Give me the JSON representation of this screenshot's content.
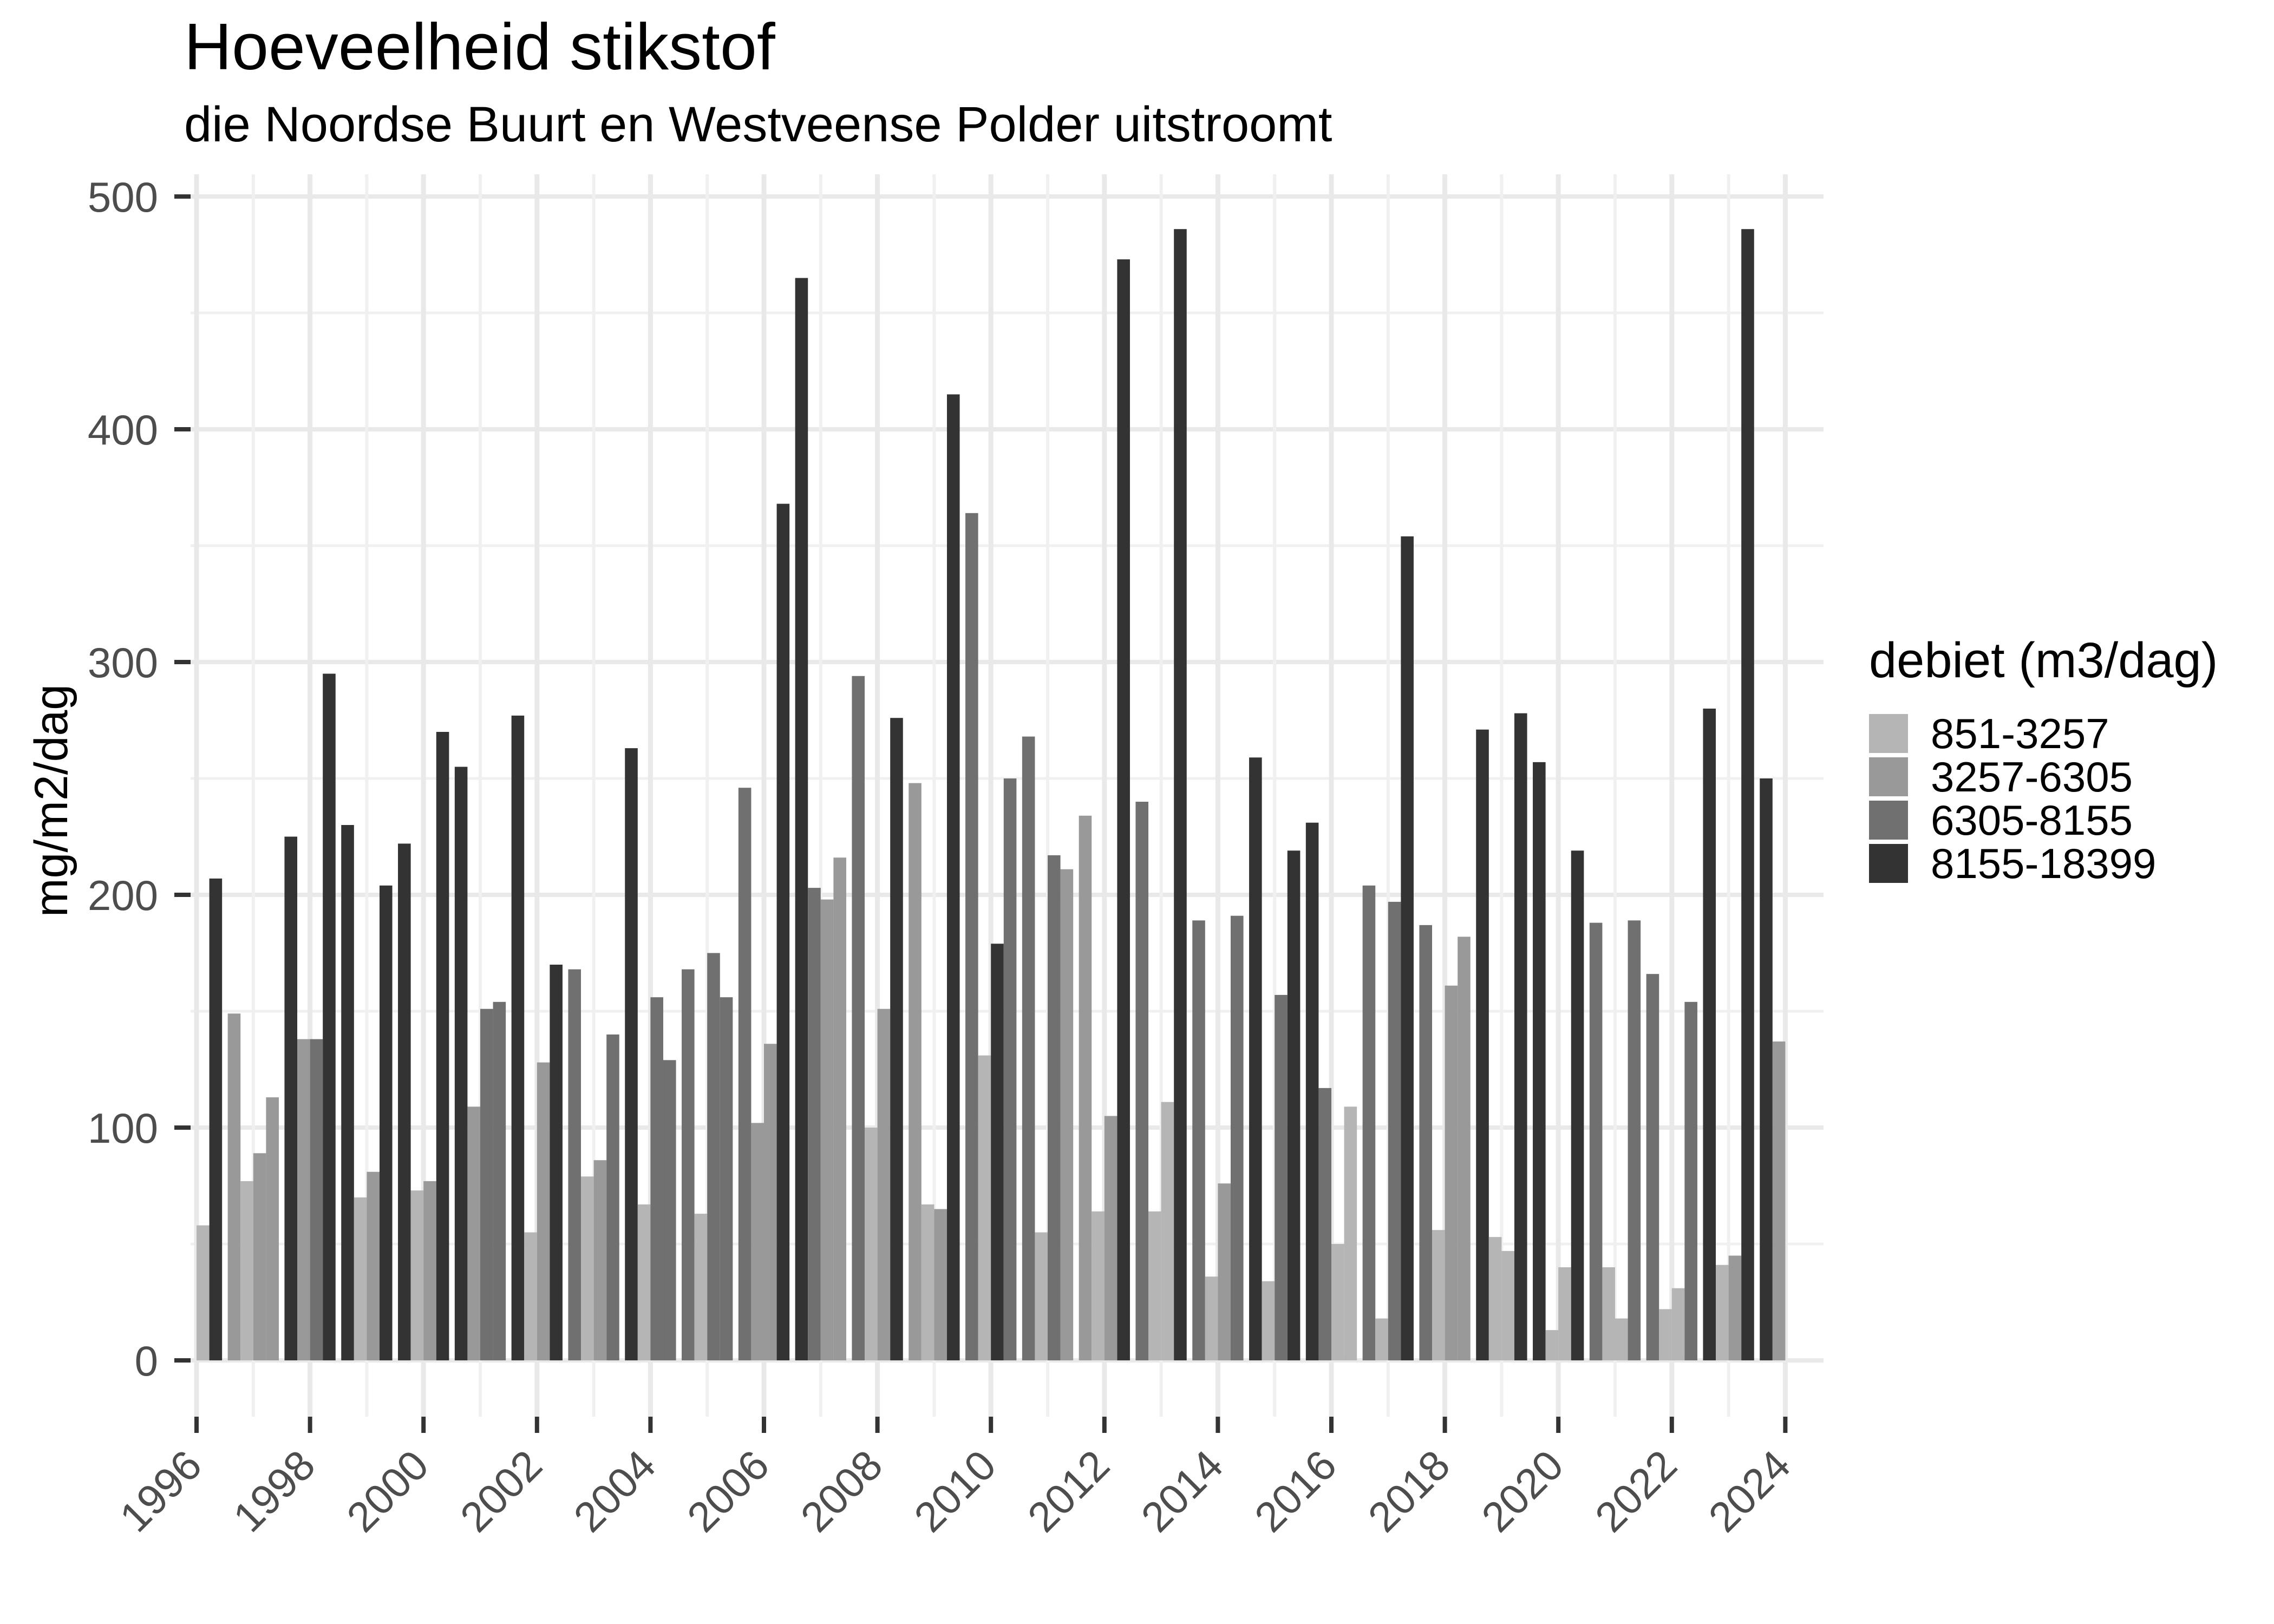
{
  "title": "Hoeveelheid stikstof",
  "subtitle": "die Noordse Buurt en Westveense Polder uitstroomt",
  "chart_data": {
    "type": "bar",
    "title": "Hoeveelheid stikstof",
    "subtitle": "die Noordse Buurt en Westveense Polder uitstroomt",
    "xlabel": "",
    "ylabel": "mg/m2/dag",
    "ylim": [
      0,
      510
    ],
    "y_major_ticks": [
      0,
      100,
      200,
      300,
      400,
      500
    ],
    "y_minor_ticks": [
      50,
      150,
      250,
      350,
      450
    ],
    "x_tick_years": [
      1996,
      1998,
      2000,
      2002,
      2004,
      2006,
      2008,
      2010,
      2012,
      2014,
      2016,
      2018,
      2020,
      2022,
      2024
    ],
    "grid": "on",
    "legend_position": "right",
    "legend": {
      "title": "debiet (m3/dag)",
      "categories": [
        {
          "label": "851-3257",
          "color": "#b5b5b5"
        },
        {
          "label": "3257-6305",
          "color": "#999999"
        },
        {
          "label": "6305-8155",
          "color": "#707070"
        },
        {
          "label": "8155-18399",
          "color": "#333333"
        }
      ]
    },
    "series_note": "each year has up to 4 dodged bars; bar = [category_index, value_mg_m2_dag], null = no bar in that slot",
    "years": [
      {
        "year": 1996,
        "bars": [
          null,
          null,
          [
            0,
            58
          ],
          [
            3,
            207
          ]
        ]
      },
      {
        "year": 1997,
        "bars": [
          [
            1,
            149
          ],
          [
            0,
            77
          ],
          [
            1,
            89
          ],
          [
            1,
            113
          ]
        ]
      },
      {
        "year": 1998,
        "bars": [
          [
            3,
            225
          ],
          [
            1,
            138
          ],
          [
            2,
            138
          ],
          [
            3,
            295
          ]
        ]
      },
      {
        "year": 1999,
        "bars": [
          [
            3,
            230
          ],
          [
            0,
            70
          ],
          [
            1,
            81
          ],
          [
            3,
            204
          ]
        ]
      },
      {
        "year": 2000,
        "bars": [
          [
            3,
            222
          ],
          [
            0,
            73
          ],
          [
            1,
            77
          ],
          [
            3,
            270
          ]
        ]
      },
      {
        "year": 2001,
        "bars": [
          [
            3,
            255
          ],
          [
            1,
            109
          ],
          [
            2,
            151
          ],
          [
            2,
            154
          ]
        ]
      },
      {
        "year": 2002,
        "bars": [
          [
            3,
            277
          ],
          [
            0,
            55
          ],
          [
            1,
            128
          ],
          [
            3,
            170
          ]
        ]
      },
      {
        "year": 2003,
        "bars": [
          [
            2,
            168
          ],
          [
            0,
            79
          ],
          [
            1,
            86
          ],
          [
            2,
            140
          ]
        ]
      },
      {
        "year": 2004,
        "bars": [
          [
            3,
            263
          ],
          [
            0,
            67
          ],
          [
            2,
            156
          ],
          [
            2,
            129
          ]
        ]
      },
      {
        "year": 2005,
        "bars": [
          [
            2,
            168
          ],
          [
            0,
            63
          ],
          [
            2,
            175
          ],
          [
            2,
            156
          ]
        ]
      },
      {
        "year": 2006,
        "bars": [
          [
            2,
            246
          ],
          [
            1,
            102
          ],
          [
            1,
            136
          ],
          [
            3,
            368
          ]
        ]
      },
      {
        "year": 2007,
        "bars": [
          [
            3,
            465
          ],
          [
            2,
            203
          ],
          [
            1,
            198
          ],
          [
            1,
            216
          ]
        ]
      },
      {
        "year": 2008,
        "bars": [
          [
            2,
            294
          ],
          [
            0,
            100
          ],
          [
            1,
            151
          ],
          [
            3,
            276
          ]
        ]
      },
      {
        "year": 2009,
        "bars": [
          [
            1,
            248
          ],
          [
            0,
            67
          ],
          [
            1,
            65
          ],
          [
            3,
            415
          ]
        ]
      },
      {
        "year": 2010,
        "bars": [
          [
            2,
            364
          ],
          [
            0,
            131
          ],
          [
            3,
            179
          ],
          [
            2,
            250
          ]
        ]
      },
      {
        "year": 2011,
        "bars": [
          [
            2,
            268
          ],
          [
            0,
            55
          ],
          [
            2,
            217
          ],
          [
            1,
            211
          ]
        ]
      },
      {
        "year": 2012,
        "bars": [
          [
            1,
            234
          ],
          [
            0,
            64
          ],
          [
            1,
            105
          ],
          [
            3,
            473
          ]
        ]
      },
      {
        "year": 2013,
        "bars": [
          [
            2,
            240
          ],
          [
            0,
            64
          ],
          [
            0,
            111
          ],
          [
            3,
            486
          ]
        ]
      },
      {
        "year": 2014,
        "bars": [
          [
            2,
            189
          ],
          [
            0,
            36
          ],
          [
            1,
            76
          ],
          [
            2,
            191
          ]
        ]
      },
      {
        "year": 2015,
        "bars": [
          [
            3,
            259
          ],
          [
            0,
            34
          ],
          [
            2,
            157
          ],
          [
            3,
            219
          ]
        ]
      },
      {
        "year": 2016,
        "bars": [
          [
            3,
            231
          ],
          [
            2,
            117
          ],
          [
            0,
            50
          ],
          [
            0,
            109
          ]
        ]
      },
      {
        "year": 2017,
        "bars": [
          [
            2,
            204
          ],
          [
            0,
            18
          ],
          [
            2,
            197
          ],
          [
            3,
            354
          ]
        ]
      },
      {
        "year": 2018,
        "bars": [
          [
            2,
            187
          ],
          [
            0,
            56
          ],
          [
            1,
            161
          ],
          [
            1,
            182
          ]
        ]
      },
      {
        "year": 2019,
        "bars": [
          [
            3,
            271
          ],
          [
            0,
            53
          ],
          [
            0,
            47
          ],
          [
            3,
            278
          ]
        ]
      },
      {
        "year": 2020,
        "bars": [
          [
            3,
            257
          ],
          [
            0,
            13
          ],
          [
            0,
            40
          ],
          [
            3,
            219
          ]
        ]
      },
      {
        "year": 2021,
        "bars": [
          [
            2,
            188
          ],
          [
            0,
            40
          ],
          [
            0,
            18
          ],
          [
            2,
            189
          ]
        ]
      },
      {
        "year": 2022,
        "bars": [
          [
            2,
            166
          ],
          [
            0,
            22
          ],
          [
            0,
            31
          ],
          [
            2,
            154
          ]
        ]
      },
      {
        "year": 2023,
        "bars": [
          [
            3,
            280
          ],
          [
            0,
            41
          ],
          [
            1,
            45
          ],
          [
            3,
            486
          ]
        ]
      },
      {
        "year": 2024,
        "bars": [
          [
            3,
            250
          ],
          [
            1,
            137
          ],
          null,
          null
        ]
      }
    ]
  },
  "style_colors": {
    "grid_major": "#e9e9e9",
    "grid_minor": "#f0f0f0",
    "tick_mark": "#333333",
    "tick_label": "#4d4d4d"
  }
}
